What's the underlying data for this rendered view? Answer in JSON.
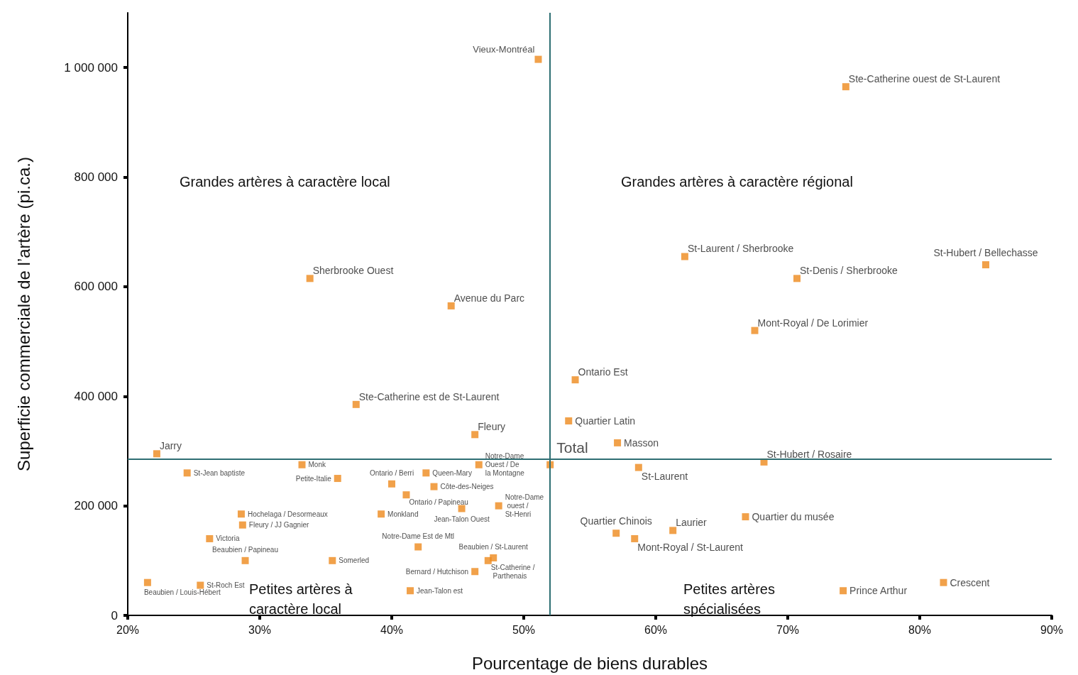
{
  "chart_data": {
    "type": "scatter",
    "xlabel": "Pourcentage de biens durables",
    "ylabel": "Superficie commerciale de l’artère (pi.ca.)",
    "xlim": [
      20,
      90
    ],
    "xticks": [
      {
        "value": 20,
        "label": "20%"
      },
      {
        "value": 30,
        "label": "30%"
      },
      {
        "value": 40,
        "label": "40%"
      },
      {
        "value": 50,
        "label": "50%"
      },
      {
        "value": 60,
        "label": "60%"
      },
      {
        "value": 70,
        "label": "70%"
      },
      {
        "value": 80,
        "label": "80%"
      },
      {
        "value": 90,
        "label": "90%"
      }
    ],
    "ylim": [
      0,
      1100000
    ],
    "yticks": [
      0,
      {
        "value": 200000,
        "label": "200 000"
      },
      {
        "value": 400000,
        "label": "400 000"
      },
      {
        "value": 600000,
        "label": "600 000"
      },
      {
        "value": 800000,
        "label": "800 000"
      },
      {
        "value": 1000000,
        "label": "1 000 000"
      }
    ],
    "grid": false,
    "legend": false,
    "marker": "square",
    "ref_lines": [
      {
        "axis": "x",
        "value": 52,
        "color": "#2e6e73"
      },
      {
        "axis": "y",
        "value": 285000,
        "color": "#2e6e73"
      }
    ],
    "annotations": [
      "Grandes artères à caractère local",
      "Grandes artères à caractère régional",
      "Petites artères à caractère local",
      "Petites artères spécialisées"
    ],
    "series": [
      {
        "name": "Vieux-Montréal",
        "color": "#ee8a1d",
        "x": [
          51.1
        ],
        "values": [
          1015000
        ]
      },
      {
        "name": "Ste-Catherine ouest de St-Laurent",
        "color": "#ee8a1d",
        "x": [
          74.4
        ],
        "values": [
          965000
        ]
      },
      {
        "name": "Sherbrooke Ouest",
        "color": "#ee8a1d",
        "x": [
          33.8
        ],
        "values": [
          615000
        ]
      },
      {
        "name": "Avenue du Parc",
        "color": "#ee8a1d",
        "x": [
          44.5
        ],
        "values": [
          565000
        ]
      },
      {
        "name": "Ste-Catherine est de St-Laurent",
        "color": "#ee8a1d",
        "x": [
          37.3
        ],
        "values": [
          385000
        ]
      },
      {
        "name": "Fleury",
        "color": "#ee8a1d",
        "x": [
          46.3
        ],
        "values": [
          330000
        ]
      },
      {
        "name": "Jarry",
        "color": "#ee8a1d",
        "x": [
          22.2
        ],
        "values": [
          295000
        ]
      },
      {
        "name": "St-Laurent / Sherbrooke",
        "color": "#ee8a1d",
        "x": [
          62.2
        ],
        "values": [
          655000
        ]
      },
      {
        "name": "St-Denis / Sherbrooke",
        "color": "#ee8a1d",
        "x": [
          70.7
        ],
        "values": [
          615000
        ]
      },
      {
        "name": "St-Hubert / Bellechasse",
        "color": "#ee8a1d",
        "x": [
          85.0
        ],
        "values": [
          640000
        ]
      },
      {
        "name": "Mont-Royal / De Lorimier",
        "color": "#ee8a1d",
        "x": [
          67.5
        ],
        "values": [
          520000
        ]
      },
      {
        "name": "Ontario Est",
        "color": "#ee8a1d",
        "x": [
          53.9
        ],
        "values": [
          430000
        ]
      },
      {
        "name": "Quartier Latin",
        "color": "#ee8a1d",
        "x": [
          53.4
        ],
        "values": [
          355000
        ]
      },
      {
        "name": "Masson",
        "color": "#ee8a1d",
        "x": [
          57.1
        ],
        "values": [
          315000
        ]
      },
      {
        "name": "Total",
        "color": "#ee8a1d",
        "x": [
          52.0
        ],
        "values": [
          275000
        ]
      },
      {
        "name": "St-Laurent",
        "color": "#ee8a1d",
        "x": [
          58.7
        ],
        "values": [
          270000
        ]
      },
      {
        "name": "St-Hubert / Rosaire",
        "color": "#ee8a1d",
        "x": [
          68.2
        ],
        "values": [
          280000
        ]
      },
      {
        "name": "Quartier du musée",
        "color": "#ee8a1d",
        "x": [
          66.8
        ],
        "values": [
          180000
        ]
      },
      {
        "name": "Laurier",
        "color": "#ee8a1d",
        "x": [
          61.3
        ],
        "values": [
          155000
        ]
      },
      {
        "name": "Quartier Chinois",
        "color": "#ee8a1d",
        "x": [
          57.0
        ],
        "values": [
          150000
        ]
      },
      {
        "name": "Mont-Royal / St-Laurent",
        "color": "#ee8a1d",
        "x": [
          58.4
        ],
        "values": [
          140000
        ]
      },
      {
        "name": "Prince Arthur",
        "color": "#ee8a1d",
        "x": [
          74.2
        ],
        "values": [
          45000
        ]
      },
      {
        "name": "Crescent",
        "color": "#ee8a1d",
        "x": [
          81.8
        ],
        "values": [
          60000
        ]
      },
      {
        "name": "St-Jean baptiste",
        "color": "#ee8a1d",
        "x": [
          24.5
        ],
        "values": [
          260000
        ]
      },
      {
        "name": "Monk",
        "color": "#ee8a1d",
        "x": [
          33.2
        ],
        "values": [
          275000
        ]
      },
      {
        "name": "Petite-Italie",
        "color": "#ee8a1d",
        "x": [
          35.9
        ],
        "values": [
          250000
        ]
      },
      {
        "name": "Ontario / Berri",
        "color": "#ee8a1d",
        "x": [
          40.0
        ],
        "values": [
          240000
        ]
      },
      {
        "name": "Hochelaga / Desormeaux",
        "color": "#ee8a1d",
        "x": [
          28.6
        ],
        "values": [
          185000
        ]
      },
      {
        "name": "Fleury / JJ Gagnier",
        "color": "#ee8a1d",
        "x": [
          28.7
        ],
        "values": [
          165000
        ]
      },
      {
        "name": "Victoria",
        "color": "#ee8a1d",
        "x": [
          26.2
        ],
        "values": [
          140000
        ]
      },
      {
        "name": "Beaubien / Papineau",
        "color": "#ee8a1d",
        "x": [
          28.9
        ],
        "values": [
          100000
        ]
      },
      {
        "name": "Somerled",
        "color": "#ee8a1d",
        "x": [
          35.5
        ],
        "values": [
          100000
        ]
      },
      {
        "name": "Beaubien / Louis-Hébert",
        "color": "#ee8a1d",
        "x": [
          21.5
        ],
        "values": [
          60000
        ]
      },
      {
        "name": "St-Roch Est",
        "color": "#ee8a1d",
        "x": [
          25.5
        ],
        "values": [
          55000
        ]
      },
      {
        "name": "Monkland",
        "color": "#ee8a1d",
        "x": [
          39.2
        ],
        "values": [
          185000
        ]
      },
      {
        "name": "Queen-Mary",
        "color": "#ee8a1d",
        "x": [
          42.6
        ],
        "values": [
          260000
        ]
      },
      {
        "name": "Notre-Dame Ouest / De la Montagne",
        "color": "#ee8a1d",
        "x": [
          46.6
        ],
        "values": [
          275000
        ]
      },
      {
        "name": "Côte-des-Neiges",
        "color": "#ee8a1d",
        "x": [
          43.2
        ],
        "values": [
          235000
        ]
      },
      {
        "name": "Ontario / Papineau",
        "color": "#ee8a1d",
        "x": [
          41.1
        ],
        "values": [
          220000
        ]
      },
      {
        "name": "Jean-Talon Ouest",
        "color": "#ee8a1d",
        "x": [
          45.3
        ],
        "values": [
          195000
        ]
      },
      {
        "name": "Notre-Dame ouest / St-Henri",
        "color": "#ee8a1d",
        "x": [
          48.1
        ],
        "values": [
          200000
        ]
      },
      {
        "name": "Notre-Dame Est de Mtl",
        "color": "#ee8a1d",
        "x": [
          42.0
        ],
        "values": [
          125000
        ]
      },
      {
        "name": "Beaubien / St-Laurent",
        "color": "#ee8a1d",
        "x": [
          47.7
        ],
        "values": [
          105000
        ]
      },
      {
        "name": "St-Catherine / Parthenais",
        "color": "#ee8a1d",
        "x": [
          47.3
        ],
        "values": [
          100000
        ]
      },
      {
        "name": "Bernard / Hutchison",
        "color": "#ee8a1d",
        "x": [
          46.3
        ],
        "values": [
          80000
        ]
      },
      {
        "name": "Jean-Talon est",
        "color": "#ee8a1d",
        "x": [
          41.4
        ],
        "values": [
          45000
        ]
      }
    ]
  }
}
